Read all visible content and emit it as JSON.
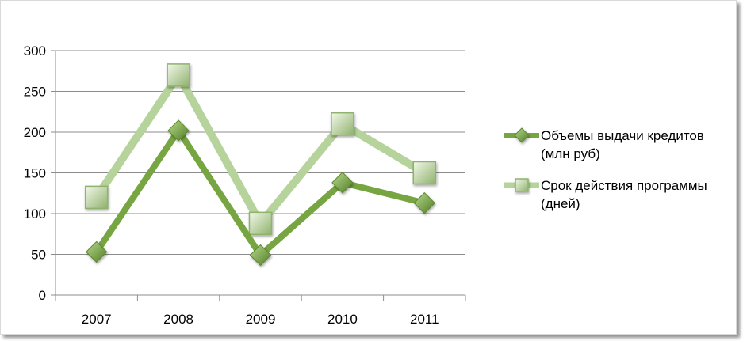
{
  "chart_data": {
    "type": "line",
    "categories": [
      "2007",
      "2008",
      "2009",
      "2010",
      "2011"
    ],
    "ylim": [
      0,
      300
    ],
    "yticks": [
      0,
      50,
      100,
      150,
      200,
      250,
      300
    ],
    "grid": true,
    "legend_position": "right",
    "series": [
      {
        "name": "Объемы выдачи кредитов (млн руб)",
        "legend_lines": [
          "Объемы выдачи кредитов",
          "(млн руб)"
        ],
        "values": [
          53,
          202,
          49,
          138,
          113
        ],
        "color": "#77a541",
        "marker": "diamond"
      },
      {
        "name": "Срок действия программы (дней)",
        "legend_lines": [
          "Срок действия программы",
          "(дней)"
        ],
        "values": [
          120,
          270,
          88,
          210,
          150
        ],
        "color": "#b5d39a",
        "marker": "square"
      }
    ]
  }
}
